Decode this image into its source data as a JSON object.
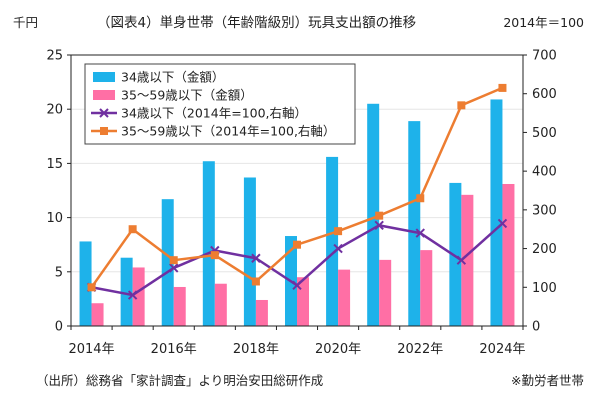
{
  "chart_data": {
    "type": "bar+line",
    "title": "（図表4）単身世帯（年齢階級別）玩具支出額の推移",
    "left_unit": "千円",
    "right_unit": "2014年＝100",
    "x_tick_labels": [
      "2014年",
      "2016年",
      "2018年",
      "2020年",
      "2022年",
      "2024年"
    ],
    "years": [
      2014,
      2015,
      2016,
      2017,
      2018,
      2019,
      2020,
      2021,
      2022,
      2023,
      2024
    ],
    "left_axis": {
      "min": 0,
      "max": 25,
      "ticks": [
        0,
        5,
        10,
        15,
        20,
        25
      ]
    },
    "right_axis": {
      "min": 0,
      "max": 700,
      "ticks": [
        0,
        100,
        200,
        300,
        400,
        500,
        600,
        700
      ]
    },
    "series": [
      {
        "name": "34歳以下（金額）",
        "kind": "bar",
        "axis": "left",
        "color": "#1EB2EA",
        "values": [
          7.8,
          6.3,
          11.7,
          15.2,
          13.7,
          8.3,
          15.6,
          20.5,
          18.9,
          13.2,
          20.9
        ]
      },
      {
        "name": "35～59歳以下（金額）",
        "kind": "bar",
        "axis": "left",
        "color": "#FF6FA5",
        "values": [
          2.1,
          5.4,
          3.6,
          3.9,
          2.4,
          4.5,
          5.2,
          6.1,
          7.0,
          12.1,
          13.1
        ]
      },
      {
        "name": "34歳以下（2014年=100,右軸）",
        "kind": "line",
        "axis": "right",
        "color": "#7030A0",
        "marker": "x",
        "values": [
          100,
          80,
          150,
          195,
          175,
          105,
          200,
          260,
          240,
          170,
          265
        ]
      },
      {
        "name": "35～59歳以下（2014年=100,右軸）",
        "kind": "line",
        "axis": "right",
        "color": "#ED7D31",
        "marker": "square",
        "values": [
          100,
          250,
          170,
          183,
          115,
          210,
          245,
          285,
          330,
          570,
          615
        ]
      }
    ]
  },
  "footer": {
    "source": "（出所）総務省「家計調査」より明治安田総研作成",
    "note": "※勤労者世帯"
  }
}
